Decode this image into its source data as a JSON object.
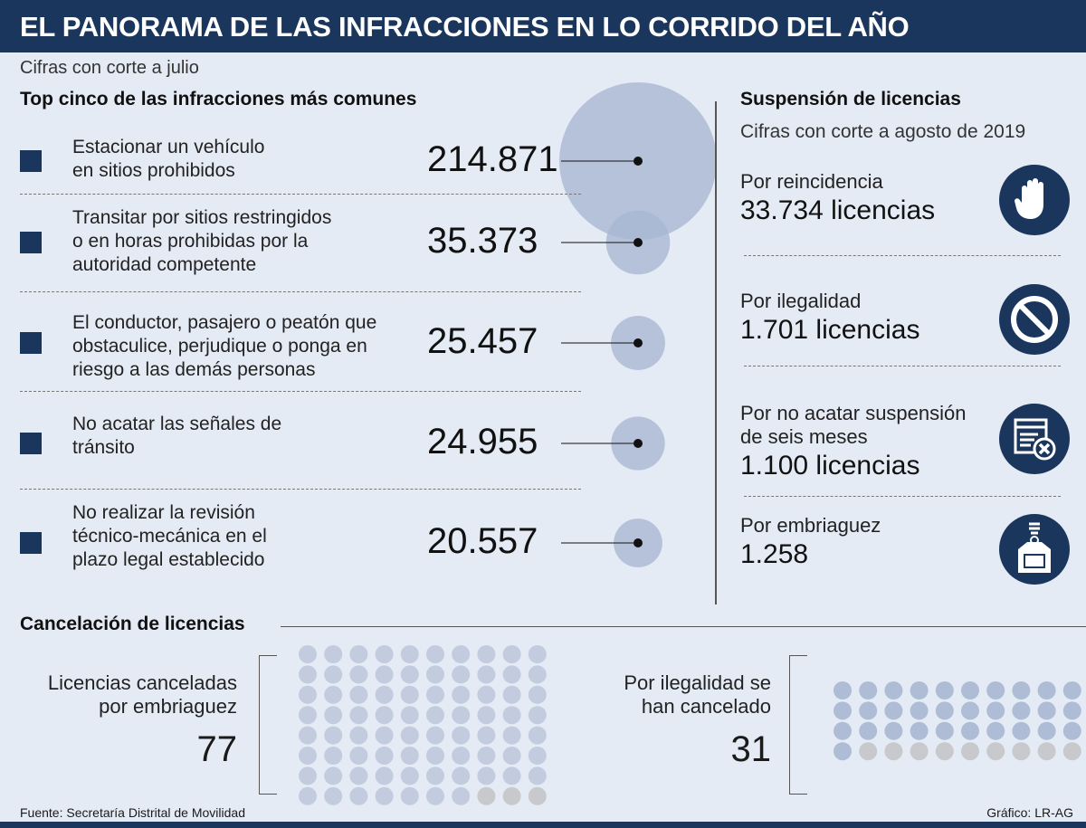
{
  "header": {
    "title": "EL PANORAMA DE LAS INFRACCIONES EN LO CORRIDO DEL AÑO",
    "subtitle": "Cifras con corte a julio"
  },
  "top5": {
    "title": "Top cinco de las infracciones más comunes",
    "items": [
      {
        "lines": [
          "Estacionar un vehículo",
          "en sitios prohibidos"
        ],
        "value_label": "214.871"
      },
      {
        "lines": [
          "Transitar por sitios restringidos",
          "o en horas prohibidas por la",
          "autoridad competente"
        ],
        "value_label": "35.373"
      },
      {
        "lines": [
          "El conductor, pasajero o peatón que",
          "obstaculice, perjudique o ponga en",
          "riesgo a las demás personas"
        ],
        "value_label": "25.457"
      },
      {
        "lines": [
          "No acatar las señales de",
          "tránsito"
        ],
        "value_label": "24.955"
      },
      {
        "lines": [
          "No realizar la revisión",
          "técnico-mecánica en el",
          "plazo legal establecido"
        ],
        "value_label": "20.557"
      }
    ]
  },
  "suspension": {
    "title": "Suspensión de licencias",
    "subtitle": "Cifras con corte a agosto de 2019",
    "items": [
      {
        "lines": [
          "Por reincidencia"
        ],
        "value": "33.734 licencias",
        "icon": "hand-stop-icon"
      },
      {
        "lines": [
          "Por ilegalidad"
        ],
        "value": "1.701 licencias",
        "icon": "prohibited-icon"
      },
      {
        "lines": [
          "Por no acatar suspensión",
          "de seis meses"
        ],
        "value": "1.100 licencias",
        "icon": "document-cancel-icon"
      },
      {
        "lines": [
          "Por embriaguez"
        ],
        "value": "1.258",
        "icon": "liquor-bottle-icon"
      }
    ]
  },
  "cancelacion": {
    "title": "Cancelación de licencias",
    "left": {
      "lines": [
        "Licencias canceladas",
        "por embriaguez"
      ],
      "value": "77"
    },
    "right": {
      "lines": [
        "Por ilegalidad se",
        "han cancelado"
      ],
      "value": "31"
    }
  },
  "footer": {
    "source": "Fuente: Secretaría Distrital de Movilidad",
    "credit": "Gráfico: LR-AG"
  },
  "colors": {
    "navy": "#1b365d",
    "bubble": "#a9b8d2",
    "dot_on_left": "#c3cbde",
    "dot_on_right": "#aebcd6",
    "dot_off": "#c8c9cc"
  },
  "chart_data": [
    {
      "type": "bubble",
      "title": "Top cinco de las infracciones más comunes",
      "categories": [
        "Estacionar un vehículo en sitios prohibidos",
        "Transitar por sitios restringidos o en horas prohibidas por la autoridad competente",
        "El conductor, pasajero o peatón que obstaculice, perjudique o ponga en riesgo a las demás personas",
        "No acatar las señales de tránsito",
        "No realizar la revisión técnico-mecánica en el plazo legal establecido"
      ],
      "values": [
        214871,
        35373,
        25457,
        24955,
        20557
      ]
    },
    {
      "type": "dot-grid",
      "title": "Licencias canceladas por embriaguez",
      "value": 77,
      "total_dots": 80,
      "columns": 10
    },
    {
      "type": "dot-grid",
      "title": "Por ilegalidad se han cancelado",
      "value": 31,
      "total_dots": 40,
      "columns": 10
    }
  ]
}
